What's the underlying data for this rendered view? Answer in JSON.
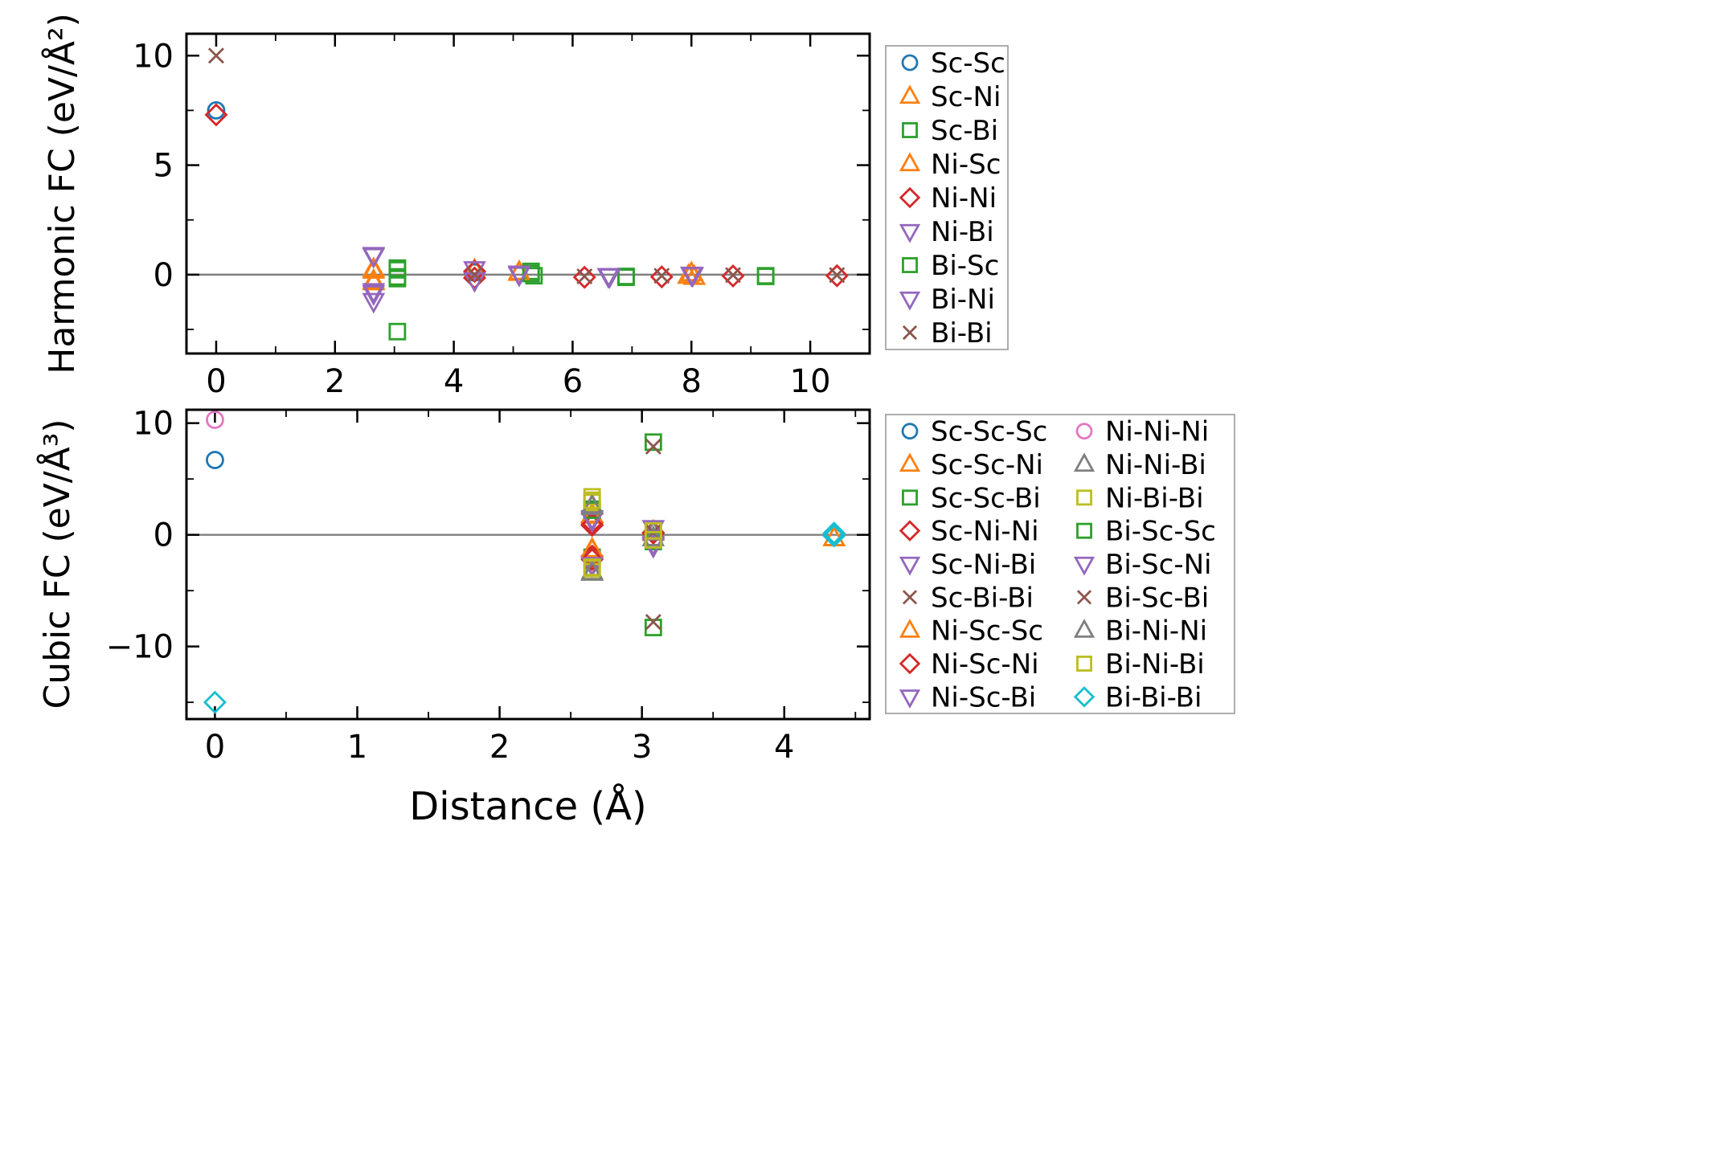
{
  "chart_data": [
    {
      "type": "scatter",
      "title": "",
      "xlabel": "",
      "ylabel": "Harmonic FC (eV/Å²)",
      "xlim": [
        -0.5,
        11.0
      ],
      "ylim": [
        -3.6,
        11.0
      ],
      "xticks": [
        0,
        2,
        4,
        6,
        8,
        10
      ],
      "yticks": [
        0,
        5,
        10
      ],
      "grid": false,
      "zero_line": true,
      "zero_line_color": "#808080",
      "legend_position": "outside-right",
      "legend_columns": 1,
      "series": [
        {
          "name": "Sc-Sc",
          "marker": "circle",
          "color": "#1f77b4",
          "points": [
            [
              0,
              7.5
            ],
            [
              4.35,
              0.1
            ]
          ]
        },
        {
          "name": "Sc-Ni",
          "marker": "triangle-up",
          "color": "#ff7f0e",
          "points": [
            [
              2.65,
              0.25
            ],
            [
              2.65,
              -0.35
            ],
            [
              4.35,
              0.2
            ],
            [
              5.1,
              0.12
            ],
            [
              8.0,
              0.06
            ],
            [
              8.05,
              -0.1
            ]
          ]
        },
        {
          "name": "Sc-Bi",
          "marker": "square",
          "color": "#2ca02c",
          "points": [
            [
              3.05,
              0.3
            ],
            [
              3.05,
              -0.1
            ],
            [
              3.05,
              -2.6
            ],
            [
              5.3,
              0.15
            ],
            [
              5.35,
              -0.05
            ],
            [
              6.9,
              -0.08
            ],
            [
              9.25,
              -0.05
            ]
          ]
        },
        {
          "name": "Ni-Sc",
          "marker": "triangle-up",
          "color": "#ff7f0e",
          "points": [
            [
              2.65,
              0.18
            ],
            [
              2.65,
              -0.28
            ],
            [
              5.1,
              0.08
            ],
            [
              7.95,
              -0.05
            ]
          ]
        },
        {
          "name": "Ni-Ni",
          "marker": "diamond",
          "color": "#d62728",
          "points": [
            [
              0,
              7.3
            ],
            [
              4.35,
              0.15
            ],
            [
              4.35,
              -0.15
            ],
            [
              6.2,
              -0.12
            ],
            [
              7.5,
              -0.1
            ],
            [
              8.7,
              -0.06
            ],
            [
              10.45,
              -0.05
            ]
          ]
        },
        {
          "name": "Ni-Bi",
          "marker": "triangle-down",
          "color": "#9467bd",
          "points": [
            [
              2.65,
              0.9
            ],
            [
              2.65,
              -0.75
            ],
            [
              2.65,
              -1.2
            ],
            [
              4.35,
              -0.25
            ],
            [
              5.1,
              0.0
            ],
            [
              6.6,
              -0.06
            ],
            [
              8.0,
              0.0
            ]
          ]
        },
        {
          "name": "Bi-Sc",
          "marker": "square",
          "color": "#2ca02c",
          "points": [
            [
              3.05,
              0.22
            ],
            [
              3.05,
              -0.18
            ],
            [
              5.3,
              0.05
            ],
            [
              6.9,
              -0.12
            ],
            [
              9.25,
              -0.08
            ]
          ]
        },
        {
          "name": "Bi-Ni",
          "marker": "triangle-down",
          "color": "#9467bd",
          "points": [
            [
              2.65,
              0.85
            ],
            [
              2.65,
              -0.85
            ],
            [
              4.35,
              0.25
            ],
            [
              5.1,
              0.05
            ],
            [
              6.62,
              -0.08
            ],
            [
              8.02,
              -0.02
            ]
          ]
        },
        {
          "name": "Bi-Bi",
          "marker": "x",
          "color": "#8c564b",
          "points": [
            [
              0,
              10.0
            ],
            [
              4.35,
              0.0
            ],
            [
              6.2,
              -0.08
            ],
            [
              7.5,
              -0.05
            ],
            [
              8.7,
              -0.02
            ],
            [
              10.45,
              -0.02
            ]
          ]
        }
      ]
    },
    {
      "type": "scatter",
      "title": "",
      "xlabel": "Distance (Å)",
      "ylabel": "Cubic FC (eV/Å³)",
      "xlim": [
        -0.2,
        4.6
      ],
      "ylim": [
        -16.5,
        11.2
      ],
      "xticks": [
        0,
        1,
        2,
        3,
        4
      ],
      "yticks": [
        -10,
        0,
        10
      ],
      "grid": false,
      "zero_line": true,
      "zero_line_color": "#808080",
      "legend_position": "outside-right",
      "legend_columns": 2,
      "series": [
        {
          "name": "Sc-Sc-Sc",
          "marker": "circle",
          "color": "#1f77b4",
          "points": [
            [
              0,
              6.7
            ]
          ]
        },
        {
          "name": "Sc-Sc-Ni",
          "marker": "triangle-up",
          "color": "#ff7f0e",
          "points": [
            [
              2.65,
              1.8
            ],
            [
              2.65,
              -1.4
            ],
            [
              3.08,
              0.3
            ],
            [
              4.35,
              -0.3
            ]
          ]
        },
        {
          "name": "Sc-Sc-Bi",
          "marker": "square",
          "color": "#2ca02c",
          "points": [
            [
              2.65,
              2.3
            ],
            [
              2.65,
              -2.0
            ],
            [
              3.08,
              0.5
            ],
            [
              3.08,
              -0.6
            ]
          ]
        },
        {
          "name": "Sc-Ni-Ni",
          "marker": "diamond",
          "color": "#d62728",
          "points": [
            [
              2.65,
              1.1
            ],
            [
              2.65,
              0.85
            ],
            [
              2.65,
              -1.9
            ],
            [
              3.08,
              0.2
            ]
          ]
        },
        {
          "name": "Sc-Ni-Bi",
          "marker": "triangle-down",
          "color": "#9467bd",
          "points": [
            [
              2.65,
              1.5
            ],
            [
              2.65,
              -2.6
            ],
            [
              3.08,
              0.6
            ],
            [
              3.08,
              -0.9
            ]
          ]
        },
        {
          "name": "Sc-Bi-Bi",
          "marker": "x",
          "color": "#8c564b",
          "points": [
            [
              2.65,
              2.0
            ],
            [
              2.65,
              -2.4
            ]
          ]
        },
        {
          "name": "Ni-Sc-Sc",
          "marker": "triangle-up",
          "color": "#ff7f0e",
          "points": [
            [
              2.65,
              1.7
            ],
            [
              2.65,
              -1.3
            ],
            [
              4.35,
              -0.3
            ]
          ]
        },
        {
          "name": "Ni-Sc-Ni",
          "marker": "diamond",
          "color": "#d62728",
          "points": [
            [
              2.65,
              0.9
            ],
            [
              2.65,
              -2.2
            ],
            [
              3.08,
              0.15
            ]
          ]
        },
        {
          "name": "Ni-Sc-Bi",
          "marker": "triangle-down",
          "color": "#9467bd",
          "points": [
            [
              2.65,
              1.4
            ],
            [
              2.65,
              -2.7
            ],
            [
              3.08,
              -0.8
            ]
          ]
        },
        {
          "name": "Ni-Ni-Ni",
          "marker": "circle",
          "color": "#e377c2",
          "points": [
            [
              0,
              10.3
            ]
          ]
        },
        {
          "name": "Ni-Ni-Bi",
          "marker": "triangle-up",
          "color": "#7f7f7f",
          "points": [
            [
              2.65,
              2.6
            ],
            [
              2.65,
              -3.3
            ],
            [
              3.08,
              0.2
            ]
          ]
        },
        {
          "name": "Ni-Bi-Bi",
          "marker": "square",
          "color": "#bcbd22",
          "points": [
            [
              2.65,
              3.4
            ],
            [
              2.65,
              2.9
            ],
            [
              2.65,
              -2.9
            ],
            [
              2.65,
              -3.3
            ],
            [
              3.08,
              0.4
            ]
          ]
        },
        {
          "name": "Bi-Sc-Sc",
          "marker": "square",
          "color": "#2ca02c",
          "points": [
            [
              3.08,
              8.3
            ],
            [
              3.08,
              -8.3
            ],
            [
              3.08,
              -0.5
            ],
            [
              2.65,
              2.2
            ]
          ]
        },
        {
          "name": "Bi-Sc-Ni",
          "marker": "triangle-down",
          "color": "#9467bd",
          "points": [
            [
              2.65,
              1.3
            ],
            [
              3.08,
              0.6
            ],
            [
              3.08,
              -1.0
            ]
          ]
        },
        {
          "name": "Bi-Sc-Bi",
          "marker": "x",
          "color": "#8c564b",
          "points": [
            [
              3.08,
              7.9
            ],
            [
              3.08,
              -7.8
            ],
            [
              3.08,
              0.25
            ]
          ]
        },
        {
          "name": "Bi-Ni-Ni",
          "marker": "triangle-up",
          "color": "#7f7f7f",
          "points": [
            [
              2.65,
              2.5
            ],
            [
              2.65,
              -3.4
            ],
            [
              3.08,
              -0.3
            ]
          ]
        },
        {
          "name": "Bi-Ni-Bi",
          "marker": "square",
          "color": "#bcbd22",
          "points": [
            [
              2.65,
              3.1
            ],
            [
              2.65,
              -3.0
            ],
            [
              3.08,
              0.35
            ],
            [
              3.08,
              -0.45
            ]
          ]
        },
        {
          "name": "Bi-Bi-Bi",
          "marker": "diamond",
          "color": "#17becf",
          "points": [
            [
              0,
              -15.0
            ],
            [
              4.35,
              0.15
            ],
            [
              4.35,
              -0.1
            ]
          ]
        }
      ]
    }
  ]
}
